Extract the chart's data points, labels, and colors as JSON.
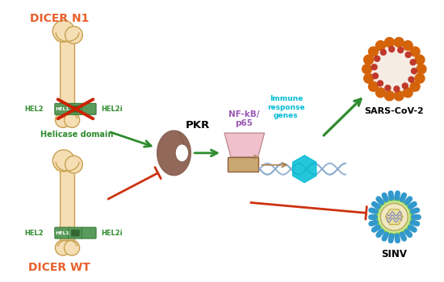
{
  "bg_color": "#ffffff",
  "dicer_n1_label": "DICER N1",
  "dicer_wt_label": "DICER WT",
  "pkr_label": "PKR",
  "nfkb_label": "NF-kB/\np65",
  "immune_label": "Immune\nresponse\ngenes",
  "sars_label": "SARS-CoV-2",
  "sinv_label": "SINV",
  "helicase_label": "Helicase domain",
  "dicer_color": "#e8612c",
  "helicase_color": "#2e8b2e",
  "nfkb_color": "#9b59b6",
  "immune_color": "#00bcd4",
  "sars_orange": "#d4630a",
  "sars_red": "#c0392b",
  "sinv_blue": "#3399cc",
  "sinv_green": "#88cc44",
  "arrow_green": "#2e8b2e",
  "arrow_red": "#cc3311",
  "bone_fill": "#f5deb3",
  "bone_outline": "#c8a050",
  "pkr_fill": "#8B6050",
  "hel_fill": "#5a9a5a",
  "hel_dark": "#336633",
  "hel_outline": "#3a7a3a",
  "cross_color": "#cc2200",
  "gene_fill": "#f0c0cc",
  "gene_base_fill": "#c8a870",
  "dna_color": "#88aacc",
  "promoter_arrow": "#b08050"
}
